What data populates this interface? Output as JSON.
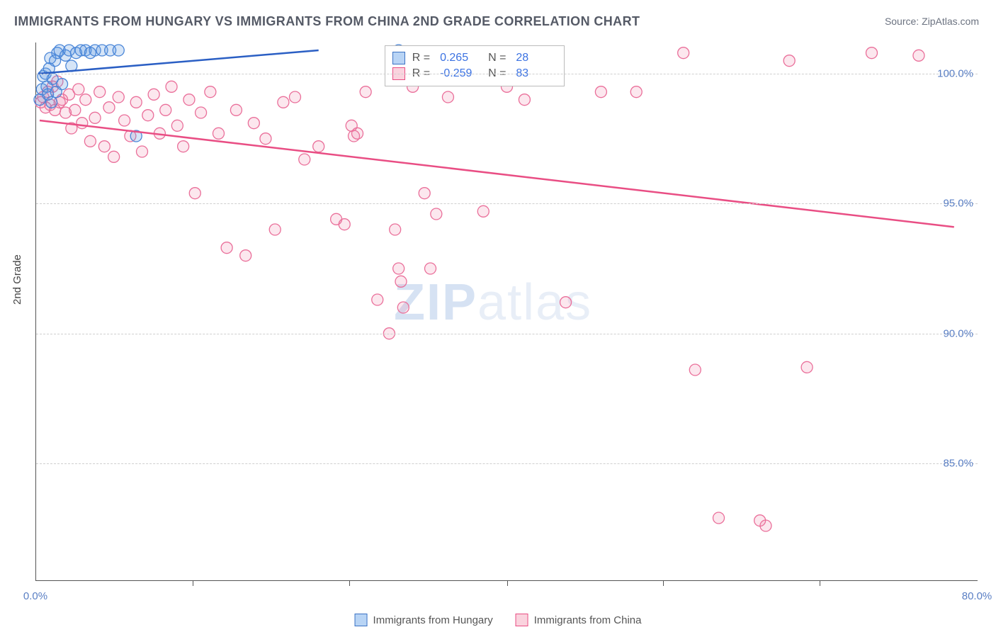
{
  "title": "IMMIGRANTS FROM HUNGARY VS IMMIGRANTS FROM CHINA 2ND GRADE CORRELATION CHART",
  "source_label": "Source: ",
  "source_name": "ZipAtlas.com",
  "y_axis_title": "2nd Grade",
  "watermark": {
    "bold": "ZIP",
    "light": "atlas"
  },
  "chart": {
    "type": "scatter",
    "xlim": [
      0,
      80
    ],
    "ylim": [
      80.5,
      101.2
    ],
    "x_ticks": [
      0,
      80
    ],
    "x_tick_labels": [
      "0.0%",
      "80.0%"
    ],
    "x_minor_ticks": [
      13.3,
      26.6,
      40,
      53.3,
      66.6
    ],
    "y_ticks": [
      85,
      90,
      95,
      100
    ],
    "y_tick_labels": [
      "85.0%",
      "90.0%",
      "95.0%",
      "100.0%"
    ],
    "background_color": "#ffffff",
    "grid_color": "#cfcfcf",
    "axis_color": "#555555",
    "marker_radius": 8,
    "series": [
      {
        "name": "Immigrants from Hungary",
        "color_fill": "rgba(92,152,224,0.25)",
        "color_stroke": "#4a86d8",
        "swatch_fill": "#b8d4f5",
        "swatch_stroke": "#3b72c4",
        "R": "0.265",
        "N": "28",
        "trend": {
          "x1": 0.2,
          "y1": 100.0,
          "x2": 24.0,
          "y2": 100.9,
          "color": "#2b5fc4"
        },
        "points": [
          [
            0.3,
            99.0
          ],
          [
            0.5,
            99.4
          ],
          [
            0.6,
            99.9
          ],
          [
            0.8,
            100.0
          ],
          [
            0.9,
            99.5
          ],
          [
            1.0,
            99.2
          ],
          [
            1.1,
            100.2
          ],
          [
            1.2,
            100.6
          ],
          [
            1.4,
            99.8
          ],
          [
            1.6,
            100.5
          ],
          [
            1.8,
            100.8
          ],
          [
            2.0,
            100.9
          ],
          [
            2.2,
            99.6
          ],
          [
            2.5,
            100.7
          ],
          [
            2.8,
            100.9
          ],
          [
            3.0,
            100.3
          ],
          [
            3.4,
            100.8
          ],
          [
            3.8,
            100.9
          ],
          [
            4.2,
            100.9
          ],
          [
            4.6,
            100.8
          ],
          [
            5.0,
            100.9
          ],
          [
            5.6,
            100.9
          ],
          [
            6.3,
            100.9
          ],
          [
            7.0,
            100.9
          ],
          [
            8.5,
            97.6
          ],
          [
            30.8,
            100.9
          ],
          [
            1.3,
            98.9
          ],
          [
            1.7,
            99.3
          ]
        ]
      },
      {
        "name": "Immigrants from China",
        "color_fill": "rgba(240,120,160,0.18)",
        "color_stroke": "#ea6f9a",
        "swatch_fill": "#fad3de",
        "swatch_stroke": "#e94e84",
        "R": "-0.259",
        "N": "83",
        "trend": {
          "x1": 0.3,
          "y1": 98.2,
          "x2": 78.0,
          "y2": 94.1,
          "color": "#e94e84"
        },
        "points": [
          [
            0.4,
            98.9
          ],
          [
            0.6,
            99.1
          ],
          [
            0.8,
            98.7
          ],
          [
            1.0,
            99.3
          ],
          [
            1.2,
            98.8
          ],
          [
            1.4,
            99.5
          ],
          [
            1.6,
            98.6
          ],
          [
            1.8,
            99.7
          ],
          [
            2.0,
            98.9
          ],
          [
            2.2,
            99.0
          ],
          [
            2.5,
            98.5
          ],
          [
            2.8,
            99.2
          ],
          [
            3.0,
            97.9
          ],
          [
            3.3,
            98.6
          ],
          [
            3.6,
            99.4
          ],
          [
            3.9,
            98.1
          ],
          [
            4.2,
            99.0
          ],
          [
            4.6,
            97.4
          ],
          [
            5.0,
            98.3
          ],
          [
            5.4,
            99.3
          ],
          [
            5.8,
            97.2
          ],
          [
            6.2,
            98.7
          ],
          [
            6.6,
            96.8
          ],
          [
            7.0,
            99.1
          ],
          [
            7.5,
            98.2
          ],
          [
            8.0,
            97.6
          ],
          [
            8.5,
            98.9
          ],
          [
            9.0,
            97.0
          ],
          [
            9.5,
            98.4
          ],
          [
            10.0,
            99.2
          ],
          [
            10.5,
            97.7
          ],
          [
            11.0,
            98.6
          ],
          [
            11.5,
            99.5
          ],
          [
            12.0,
            98.0
          ],
          [
            12.5,
            97.2
          ],
          [
            13.0,
            99.0
          ],
          [
            13.5,
            95.4
          ],
          [
            14.0,
            98.5
          ],
          [
            14.8,
            99.3
          ],
          [
            15.5,
            97.7
          ],
          [
            16.2,
            93.3
          ],
          [
            17.0,
            98.6
          ],
          [
            17.8,
            93.0
          ],
          [
            18.5,
            98.1
          ],
          [
            19.5,
            97.5
          ],
          [
            20.3,
            94.0
          ],
          [
            21.0,
            98.9
          ],
          [
            22.0,
            99.1
          ],
          [
            22.8,
            96.7
          ],
          [
            24.0,
            97.2
          ],
          [
            25.5,
            94.4
          ],
          [
            26.2,
            94.2
          ],
          [
            26.8,
            98.0
          ],
          [
            27.0,
            97.6
          ],
          [
            27.3,
            97.7
          ],
          [
            28.0,
            99.3
          ],
          [
            29.0,
            91.3
          ],
          [
            30.0,
            90.0
          ],
          [
            30.5,
            94.0
          ],
          [
            30.8,
            92.5
          ],
          [
            31.0,
            92.0
          ],
          [
            31.2,
            91.0
          ],
          [
            32.0,
            99.5
          ],
          [
            33.0,
            95.4
          ],
          [
            33.5,
            92.5
          ],
          [
            34.0,
            94.6
          ],
          [
            35.0,
            99.1
          ],
          [
            36.0,
            100.8
          ],
          [
            38.0,
            94.7
          ],
          [
            40.0,
            99.5
          ],
          [
            41.5,
            99.0
          ],
          [
            45.0,
            91.2
          ],
          [
            48.0,
            99.3
          ],
          [
            51.0,
            99.3
          ],
          [
            55.0,
            100.8
          ],
          [
            56.0,
            88.6
          ],
          [
            58.0,
            82.9
          ],
          [
            61.5,
            82.8
          ],
          [
            64.0,
            100.5
          ],
          [
            65.5,
            88.7
          ],
          [
            71.0,
            100.8
          ],
          [
            75.0,
            100.7
          ],
          [
            62.0,
            82.6
          ]
        ]
      }
    ],
    "legend_stats_position": {
      "left_pct": 37,
      "top_pct": 0.5
    },
    "bottom_legend": [
      {
        "swatch": "blue",
        "label": "Immigrants from Hungary"
      },
      {
        "swatch": "pink",
        "label": "Immigrants from China"
      }
    ]
  }
}
